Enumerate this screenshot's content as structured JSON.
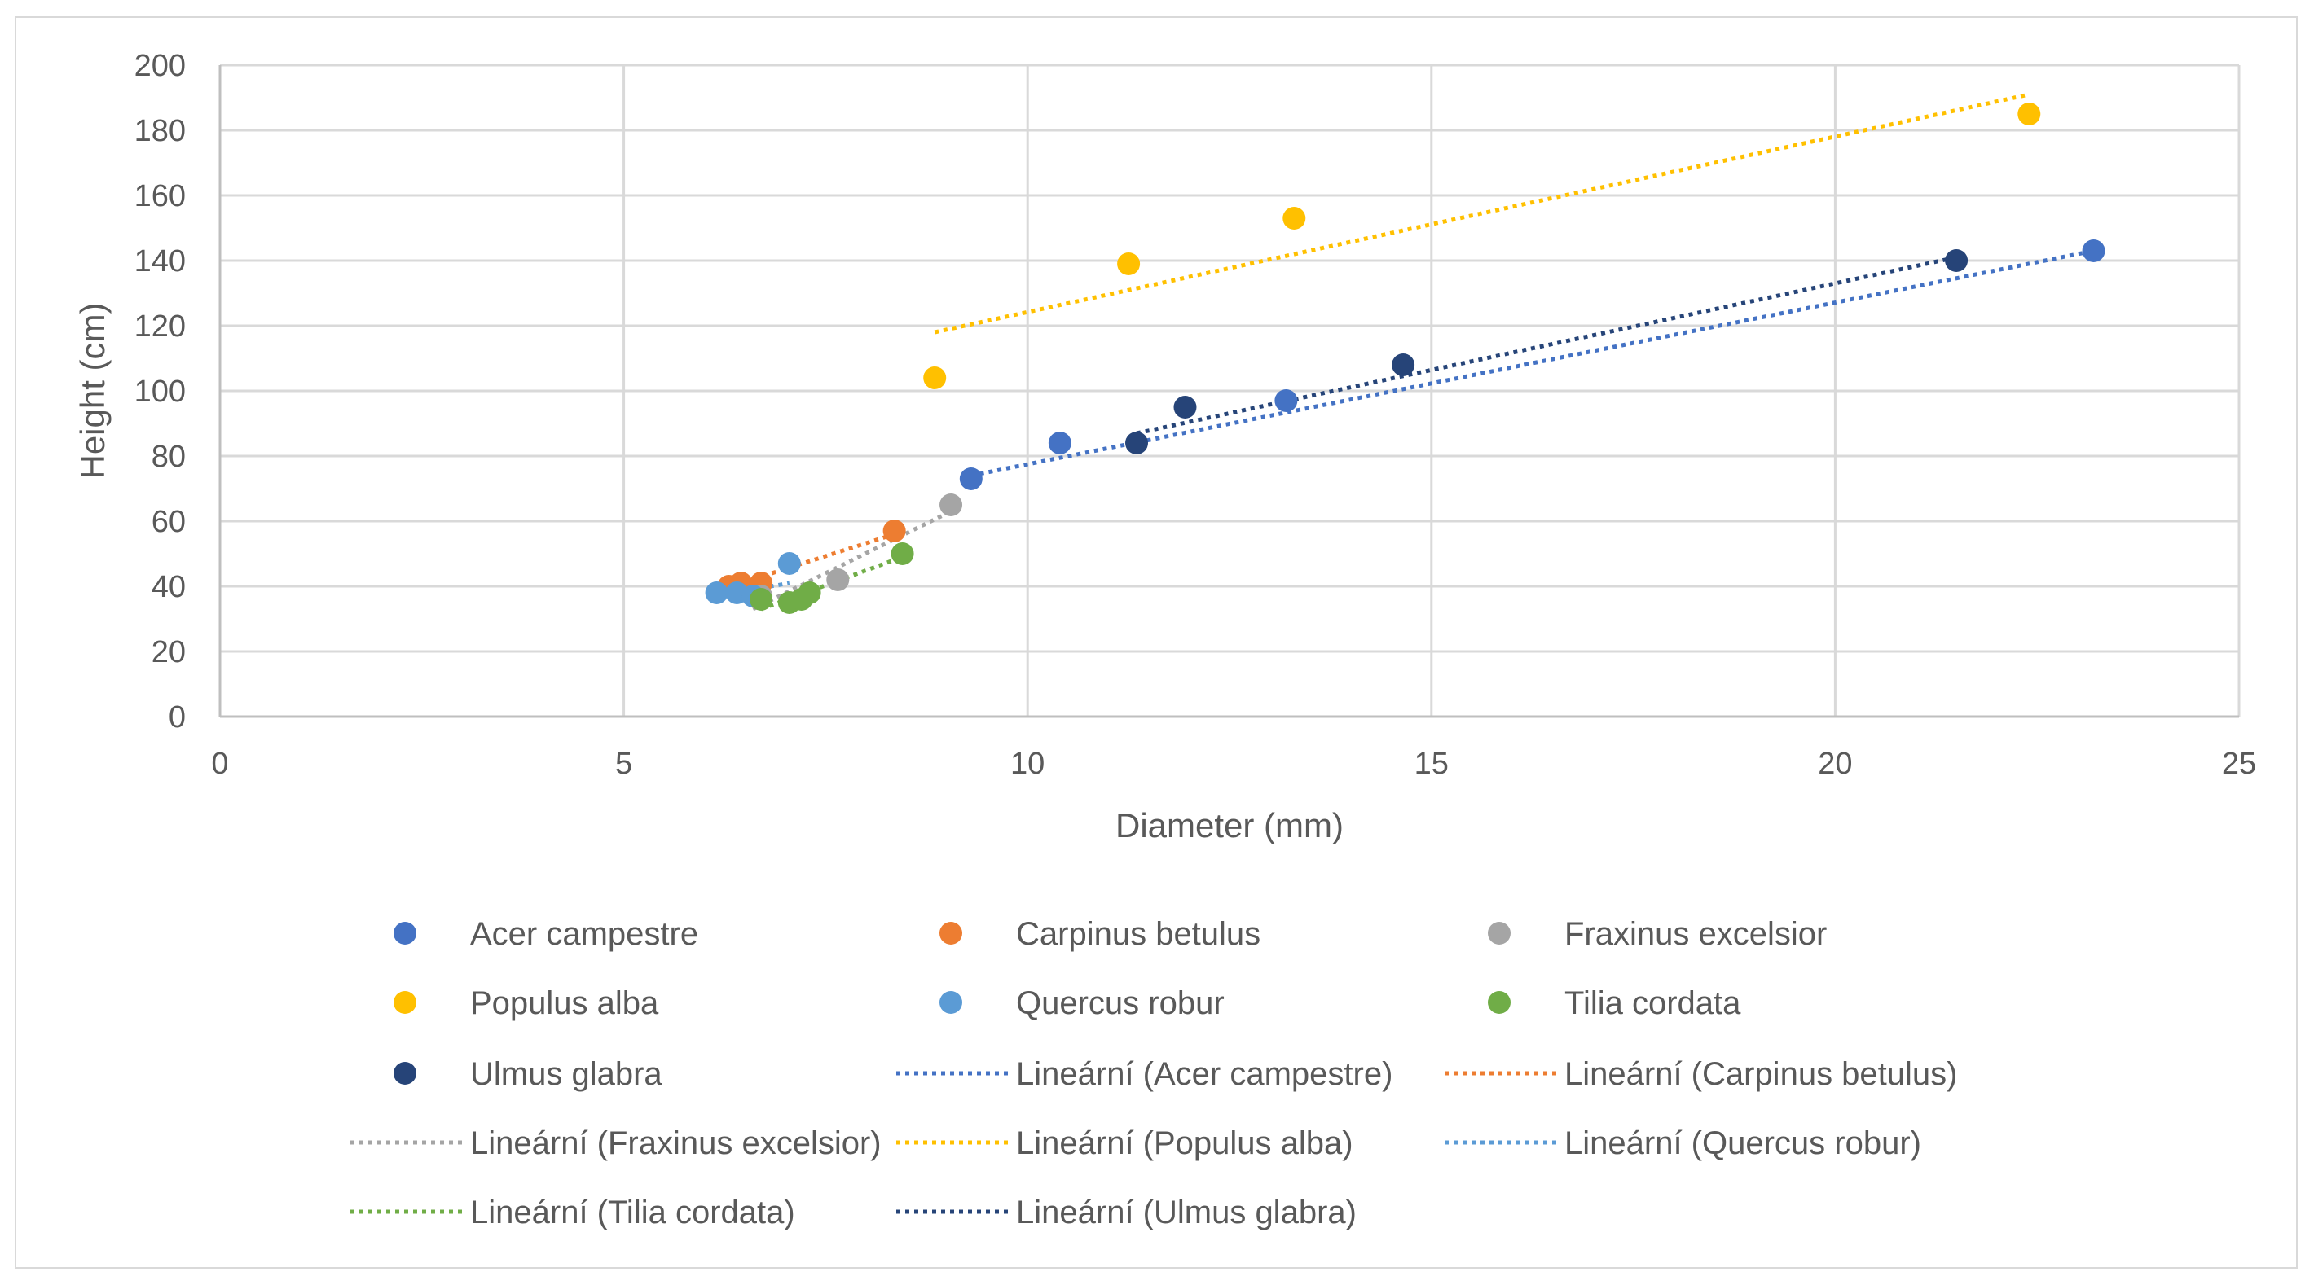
{
  "chart_data": {
    "type": "scatter",
    "title": "",
    "xlabel": "Diameter (mm)",
    "ylabel": "Height (cm)",
    "xlim": [
      0,
      25
    ],
    "ylim": [
      0,
      200
    ],
    "xticks": [
      0,
      5,
      10,
      15,
      20,
      25
    ],
    "yticks": [
      0,
      20,
      40,
      60,
      80,
      100,
      120,
      140,
      160,
      180,
      200
    ],
    "grid": true,
    "legend_position": "bottom",
    "series": [
      {
        "name": "Acer campestre",
        "color": "#4472C4",
        "trend_color": "#4472C4",
        "trend_label": "Lineární (Acer campestre)",
        "points": [
          [
            9.3,
            73
          ],
          [
            10.4,
            84
          ],
          [
            13.2,
            97
          ],
          [
            23.2,
            143
          ]
        ],
        "trend": [
          [
            9.3,
            74
          ],
          [
            23.2,
            143
          ]
        ]
      },
      {
        "name": "Carpinus betulus",
        "color": "#ED7D31",
        "trend_color": "#ED7D31",
        "trend_label": "Lineární (Carpinus betulus)",
        "points": [
          [
            6.3,
            40
          ],
          [
            6.45,
            41
          ],
          [
            6.7,
            41
          ],
          [
            8.35,
            57
          ]
        ],
        "trend": [
          [
            6.2,
            39
          ],
          [
            8.35,
            56
          ]
        ]
      },
      {
        "name": "Fraxinus excelsior",
        "color": "#A5A5A5",
        "trend_color": "#A5A5A5",
        "trend_label": "Lineární (Fraxinus excelsior)",
        "points": [
          [
            6.7,
            37
          ],
          [
            7.65,
            42
          ],
          [
            9.05,
            65
          ]
        ],
        "trend": [
          [
            6.6,
            33
          ],
          [
            9.05,
            63
          ]
        ]
      },
      {
        "name": "Populus alba",
        "color": "#FFC000",
        "trend_color": "#FFC000",
        "trend_label": "Lineární (Populus alba)",
        "points": [
          [
            8.85,
            104
          ],
          [
            11.25,
            139
          ],
          [
            13.3,
            153
          ],
          [
            22.4,
            185
          ]
        ],
        "trend": [
          [
            8.85,
            118
          ],
          [
            22.4,
            191
          ]
        ]
      },
      {
        "name": "Quercus robur",
        "color": "#5B9BD5",
        "trend_color": "#5B9BD5",
        "trend_label": "Lineární (Quercus robur)",
        "points": [
          [
            6.15,
            38
          ],
          [
            6.4,
            38
          ],
          [
            6.6,
            37
          ],
          [
            7.05,
            47
          ]
        ],
        "trend": [
          [
            6.15,
            37
          ],
          [
            7.05,
            41
          ]
        ]
      },
      {
        "name": "Tilia cordata",
        "color": "#70AD47",
        "trend_color": "#70AD47",
        "trend_label": "Lineární (Tilia cordata)",
        "points": [
          [
            6.7,
            36
          ],
          [
            7.05,
            35
          ],
          [
            7.2,
            36
          ],
          [
            7.3,
            38
          ],
          [
            8.45,
            50
          ]
        ],
        "trend": [
          [
            6.7,
            33
          ],
          [
            8.45,
            49
          ]
        ]
      },
      {
        "name": "Ulmus glabra",
        "color": "#264478",
        "trend_color": "#264478",
        "trend_label": "Lineární (Ulmus glabra)",
        "points": [
          [
            11.35,
            84
          ],
          [
            11.95,
            95
          ],
          [
            14.65,
            108
          ],
          [
            21.5,
            140
          ]
        ],
        "trend": [
          [
            11.35,
            87
          ],
          [
            21.5,
            141
          ]
        ]
      }
    ],
    "legend": [
      {
        "kind": "marker",
        "series": 0,
        "label": "Acer campestre"
      },
      {
        "kind": "marker",
        "series": 1,
        "label": "Carpinus betulus"
      },
      {
        "kind": "marker",
        "series": 2,
        "label": "Fraxinus excelsior"
      },
      {
        "kind": "marker",
        "series": 3,
        "label": "Populus alba"
      },
      {
        "kind": "marker",
        "series": 4,
        "label": "Quercus robur"
      },
      {
        "kind": "marker",
        "series": 5,
        "label": "Tilia cordata"
      },
      {
        "kind": "marker",
        "series": 6,
        "label": "Ulmus glabra"
      },
      {
        "kind": "line",
        "series": 0,
        "label": "Lineární (Acer campestre)"
      },
      {
        "kind": "line",
        "series": 1,
        "label": "Lineární (Carpinus betulus)"
      },
      {
        "kind": "line",
        "series": 2,
        "label": "Lineární (Fraxinus excelsior)"
      },
      {
        "kind": "line",
        "series": 3,
        "label": "Lineární (Populus alba)"
      },
      {
        "kind": "line",
        "series": 4,
        "label": "Lineární (Quercus robur)"
      },
      {
        "kind": "line",
        "series": 5,
        "label": "Lineární (Tilia cordata)"
      },
      {
        "kind": "line",
        "series": 6,
        "label": "Lineární (Ulmus glabra)"
      }
    ]
  }
}
